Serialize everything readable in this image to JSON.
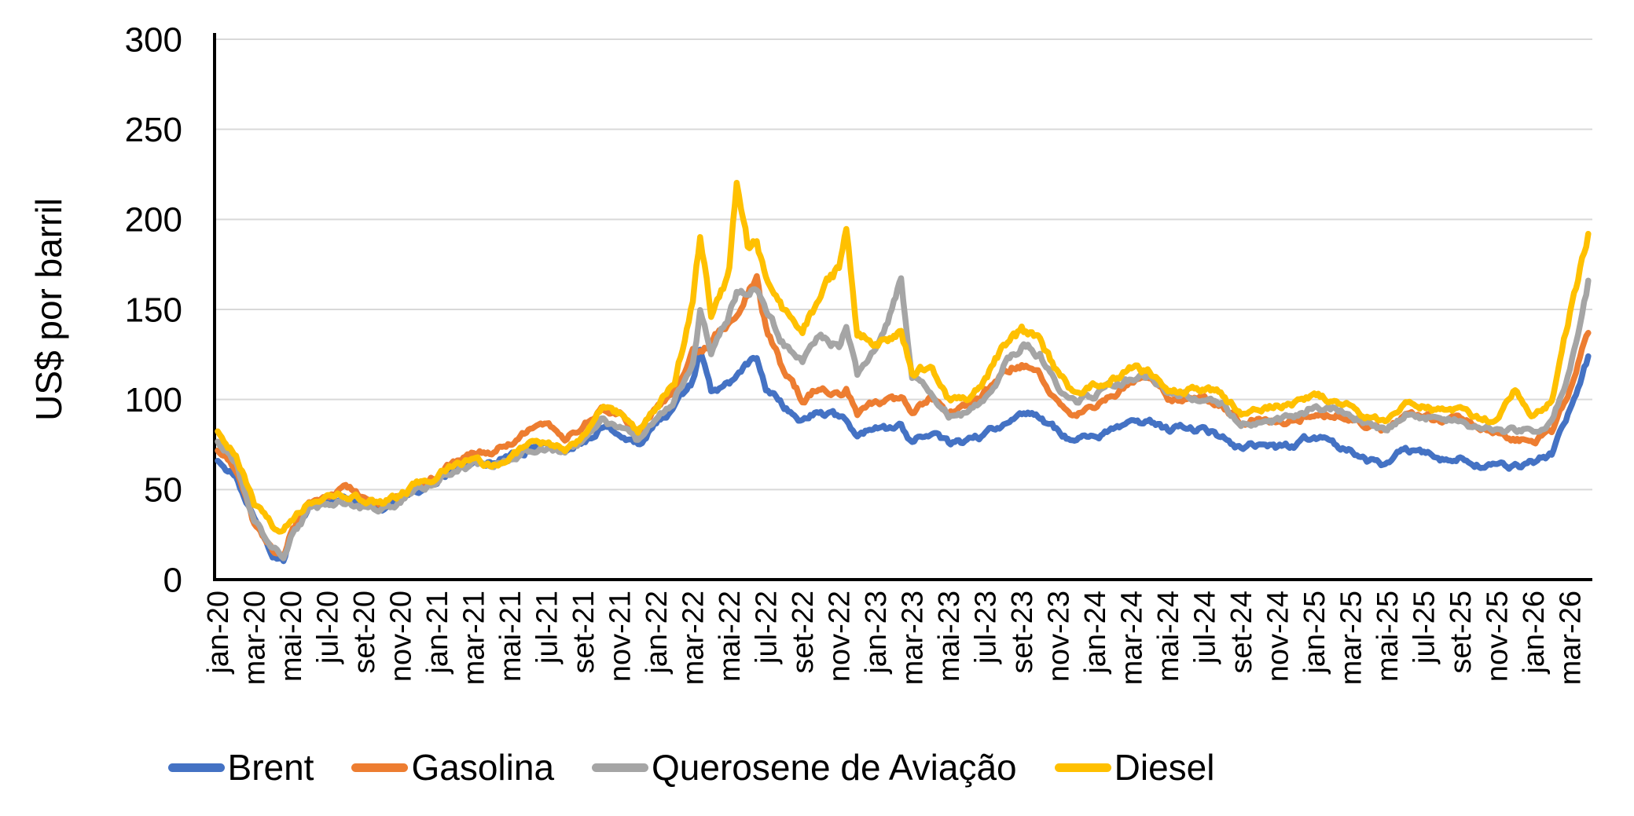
{
  "chart": {
    "y_axis_title": "US$ por barril"
  },
  "chart_data": {
    "type": "line",
    "title": "",
    "xlabel": "",
    "ylabel": "US$ por barril",
    "ylim": [
      0,
      300
    ],
    "yticks": [
      0,
      50,
      100,
      150,
      200,
      250,
      300
    ],
    "grid": true,
    "legend_position": "bottom",
    "gridline_color": "#D9D9D9",
    "axis_color": "#000000",
    "text_color": "#000000",
    "background": "#FFFFFF",
    "x_unit": "months_since_jan_2020",
    "x_tick_interval_months": 2,
    "x_tick_labels": [
      "jan-20",
      "mar-20",
      "mai-20",
      "jul-20",
      "set-20",
      "nov-20",
      "jan-21",
      "mar-21",
      "mai-21",
      "jul-21",
      "set-21",
      "nov-21",
      "jan-22",
      "mar-22",
      "mai-22",
      "jul-22",
      "set-22",
      "nov-22",
      "jan-23",
      "mar-23",
      "mai-23",
      "jul-23",
      "set-23",
      "nov-23",
      "jan-24",
      "mar-24",
      "mai-24",
      "jul-24",
      "set-24",
      "nov-24",
      "jan-25",
      "mar-25",
      "mai-25",
      "jul-25",
      "set-25",
      "nov-25",
      "jan-26",
      "mar-26"
    ],
    "x": [
      0,
      1,
      2,
      3,
      3.6,
      4,
      5,
      6,
      7,
      8,
      9,
      10,
      11,
      12,
      13,
      14,
      15,
      16,
      17,
      18,
      19,
      20,
      21,
      22,
      23,
      24,
      25,
      26,
      26.4,
      27,
      28,
      28.4,
      29,
      29.5,
      30,
      31,
      32,
      33,
      34,
      34.4,
      35,
      36,
      37,
      37.4,
      38,
      39,
      40,
      41,
      42,
      43,
      44,
      45,
      46,
      47,
      48,
      49,
      50,
      51,
      52,
      53,
      54,
      55,
      56,
      57,
      58,
      59,
      60,
      61,
      62,
      63,
      64,
      65,
      66,
      67,
      68,
      69,
      70,
      71,
      72,
      73,
      74,
      75
    ],
    "series": [
      {
        "name": "Brent",
        "color": "#4472C4",
        "values": [
          66,
          57,
          33,
          14,
          10,
          26,
          40,
          43,
          45,
          41,
          40,
          44,
          50,
          55,
          62,
          64,
          65,
          68,
          73,
          74,
          71,
          75,
          84,
          81,
          74,
          88,
          96,
          110,
          126,
          104,
          110,
          112,
          118,
          123,
          107,
          96,
          89,
          93,
          90,
          89,
          81,
          84,
          83,
          84,
          76,
          82,
          75,
          75,
          80,
          86,
          93,
          90,
          82,
          76,
          79,
          83,
          85,
          89,
          83,
          84,
          84,
          79,
          73,
          75,
          73,
          73,
          80,
          75,
          71,
          66,
          64,
          72,
          70,
          67,
          67,
          63,
          63,
          62,
          65,
          70,
          95,
          124
        ]
      },
      {
        "name": "Gasolina",
        "color": "#ED7D31",
        "values": [
          72,
          62,
          30,
          16,
          13,
          26,
          43,
          46,
          50,
          46,
          42,
          46,
          52,
          58,
          66,
          72,
          70,
          76,
          82,
          88,
          80,
          84,
          96,
          92,
          82,
          95,
          105,
          125,
          128,
          133,
          145,
          150,
          160,
          172,
          140,
          115,
          100,
          108,
          104,
          106,
          92,
          98,
          100,
          102,
          92,
          100,
          92,
          95,
          105,
          115,
          120,
          112,
          98,
          90,
          95,
          102,
          108,
          112,
          100,
          102,
          100,
          96,
          88,
          90,
          88,
          88,
          93,
          92,
          90,
          85,
          82,
          92,
          90,
          88,
          90,
          85,
          80,
          78,
          76,
          82,
          105,
          137
        ]
      },
      {
        "name": "Querosene de Aviação",
        "color": "#A5A5A5",
        "values": [
          76,
          64,
          32,
          17,
          14,
          24,
          38,
          42,
          44,
          40,
          39,
          43,
          50,
          55,
          62,
          64,
          63,
          67,
          72,
          74,
          71,
          76,
          88,
          85,
          76,
          90,
          100,
          122,
          148,
          128,
          148,
          160,
          158,
          162,
          145,
          130,
          120,
          135,
          128,
          140,
          112,
          125,
          152,
          167,
          112,
          105,
          92,
          92,
          100,
          118,
          130,
          125,
          108,
          98,
          103,
          108,
          112,
          113,
          103,
          102,
          101,
          96,
          87,
          89,
          88,
          90,
          96,
          95,
          92,
          85,
          83,
          93,
          91,
          89,
          91,
          84,
          82,
          83,
          82,
          88,
          115,
          166
        ]
      },
      {
        "name": "Diesel",
        "color": "#FFC000",
        "values": [
          82,
          70,
          42,
          30,
          27,
          34,
          44,
          47,
          48,
          44,
          43,
          47,
          53,
          58,
          65,
          66,
          64,
          69,
          74,
          76,
          73,
          79,
          95,
          92,
          81,
          96,
          108,
          155,
          188,
          148,
          172,
          223,
          185,
          190,
          168,
          150,
          140,
          158,
          172,
          190,
          135,
          130,
          136,
          140,
          115,
          118,
          100,
          100,
          110,
          130,
          138,
          132,
          115,
          102,
          108,
          112,
          118,
          115,
          104,
          105,
          106,
          102,
          92,
          95,
          96,
          98,
          104,
          100,
          96,
          90,
          88,
          98,
          96,
          94,
          96,
          90,
          88,
          105,
          92,
          100,
          148,
          192
        ]
      }
    ],
    "render": {
      "noise_amplitude": 3.6,
      "noise_seed": 11,
      "line_width": 7.5
    }
  }
}
